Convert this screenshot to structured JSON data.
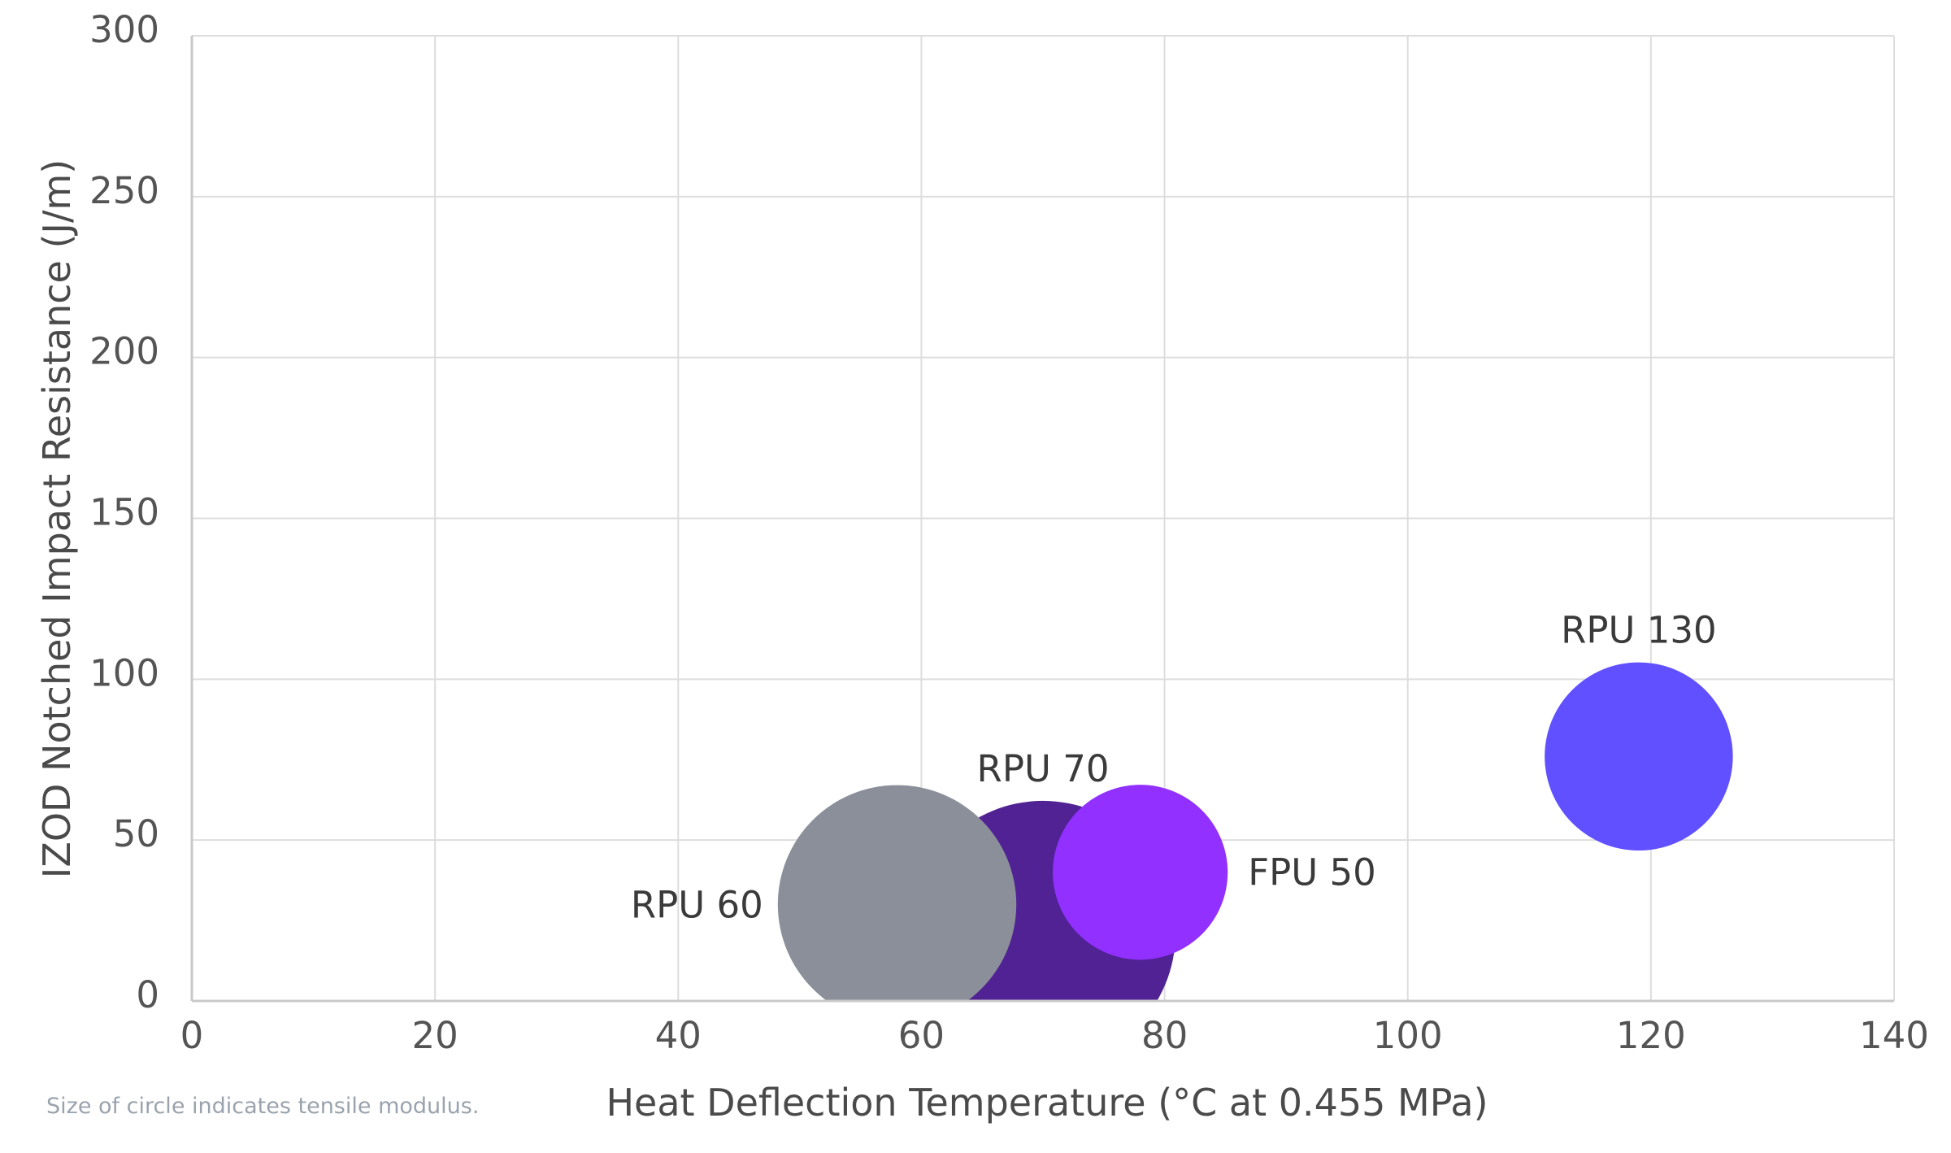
{
  "chart_data": {
    "type": "bubble",
    "title": "",
    "xlabel": "Heat Deflection Temperature (°C at 0.455 MPa)",
    "ylabel": "IZOD Notched Impact Resistance (J/m)",
    "xlim": [
      0,
      140
    ],
    "ylim": [
      0,
      300
    ],
    "x_ticks": [
      0,
      20,
      40,
      60,
      80,
      100,
      120,
      140
    ],
    "y_ticks": [
      0,
      50,
      100,
      150,
      200,
      250,
      300
    ],
    "x_tick_labels": [
      "0",
      "20",
      "40",
      "60",
      "80",
      "100",
      "120",
      "140"
    ],
    "y_tick_labels": [
      "0",
      "50",
      "100",
      "150",
      "200",
      "250",
      "300"
    ],
    "grid": true,
    "size_meaning": "tensile modulus (relative circle size)",
    "series": [
      {
        "name": "RPU 70",
        "x": 70,
        "y": 21,
        "size": 1.0,
        "color": "#512293",
        "label_position": "top"
      },
      {
        "name": "RPU 60",
        "x": 58,
        "y": 30,
        "size": 0.9,
        "color": "#8a8f99",
        "label_position": "left"
      },
      {
        "name": "FPU 50",
        "x": 78,
        "y": 40,
        "size": 0.66,
        "color": "#9130ff",
        "label_position": "right"
      },
      {
        "name": "RPU 130",
        "x": 119,
        "y": 76,
        "size": 0.71,
        "color": "#6050ff",
        "label_position": "top"
      }
    ],
    "footnote": "Size of circle indicates tensile modulus."
  },
  "colors": {
    "grid": "#dddddd",
    "axis": "#c9c9c9"
  }
}
